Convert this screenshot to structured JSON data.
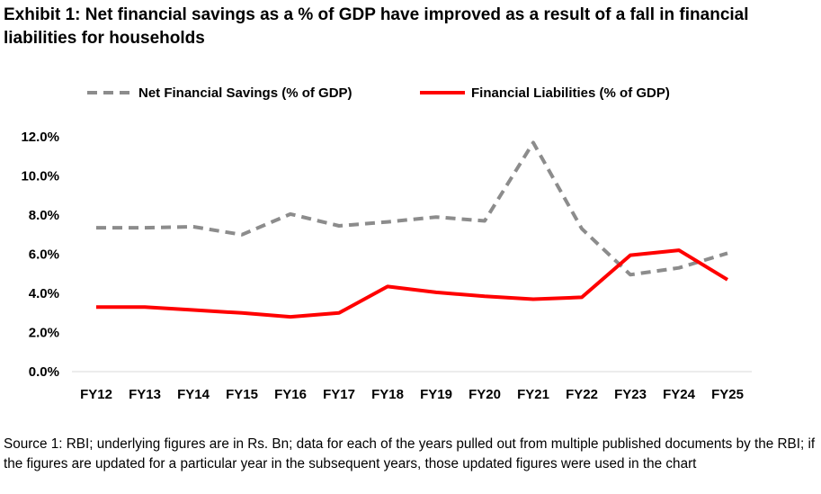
{
  "title": "Exhibit 1: Net financial savings as a % of GDP have improved as a result of a fall in financial liabilities for households",
  "source_note": "Source 1: RBI; underlying figures are in Rs. Bn; data for each of the years pulled out from multiple published documents by the RBI; if the figures are updated for a particular year in the subsequent years, those updated figures were used in the chart",
  "chart_data": {
    "type": "line",
    "title": "Exhibit 1: Net financial savings as a % of GDP have improved as a result of a fall in financial liabilities for households",
    "xlabel": "",
    "ylabel": "",
    "categories": [
      "FY12",
      "FY13",
      "FY14",
      "FY15",
      "FY16",
      "FY17",
      "FY18",
      "FY19",
      "FY20",
      "FY21",
      "FY22",
      "FY23",
      "FY24",
      "FY25"
    ],
    "series": [
      {
        "name": "Net Financial Savings (% of GDP)",
        "color": "#8c8c8c",
        "style": "dashed",
        "values": [
          7.35,
          7.35,
          7.4,
          7.0,
          8.05,
          7.45,
          7.65,
          7.9,
          7.7,
          11.7,
          7.3,
          4.95,
          5.3,
          6.05
        ]
      },
      {
        "name": "Financial Liabilities (% of GDP)",
        "color": "#ff0000",
        "style": "solid",
        "values": [
          3.3,
          3.3,
          3.15,
          3.0,
          2.8,
          3.0,
          4.35,
          4.05,
          3.85,
          3.7,
          3.8,
          5.95,
          6.2,
          4.7
        ]
      }
    ],
    "ylim": [
      0,
      12
    ],
    "yticks": [
      0,
      2,
      4,
      6,
      8,
      10,
      12
    ],
    "ytick_labels": [
      "0.0%",
      "2.0%",
      "4.0%",
      "6.0%",
      "8.0%",
      "10.0%",
      "12.0%"
    ],
    "grid": false,
    "legend_position": "top"
  }
}
